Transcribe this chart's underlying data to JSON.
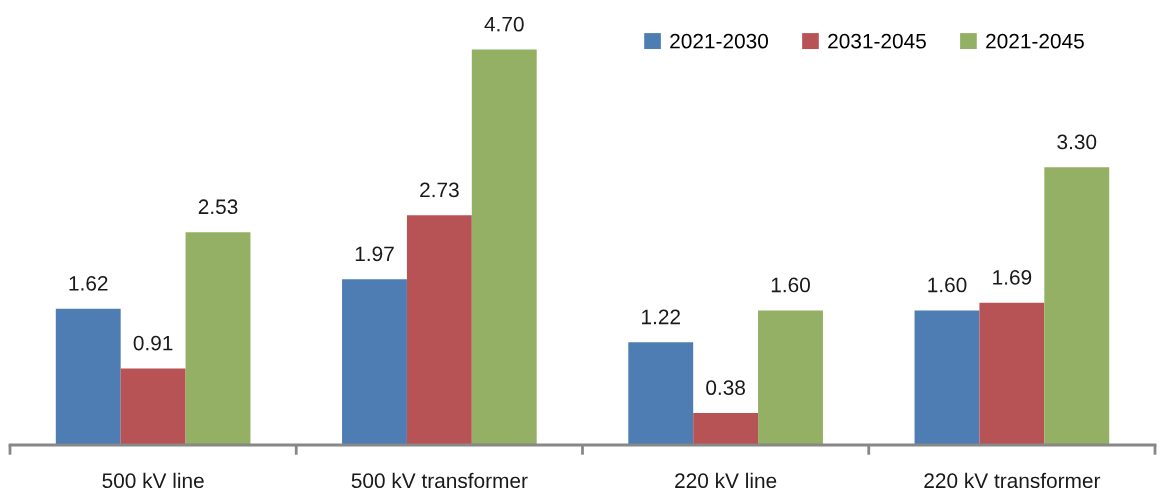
{
  "chart_data": {
    "type": "bar",
    "categories": [
      "500 kV line",
      "500 kV transformer",
      "220 kV line",
      "220 kV transformer"
    ],
    "series": [
      {
        "name": "2021-2030",
        "color": "#4e7db3",
        "values": [
          1.62,
          1.97,
          1.22,
          1.6
        ],
        "value_labels": [
          "1.62",
          "1.97",
          "1.22",
          "1.60"
        ]
      },
      {
        "name": "2031-2045",
        "color": "#b75255",
        "values": [
          0.91,
          2.73,
          0.38,
          1.69
        ],
        "value_labels": [
          "0.91",
          "2.73",
          "0.38",
          "1.69"
        ]
      },
      {
        "name": "2021-2045",
        "color": "#93b064",
        "values": [
          2.53,
          4.7,
          1.6,
          3.3
        ],
        "value_labels": [
          "2.53",
          "4.70",
          "1.60",
          "3.30"
        ]
      }
    ],
    "legend": "top right",
    "grid": false
  }
}
